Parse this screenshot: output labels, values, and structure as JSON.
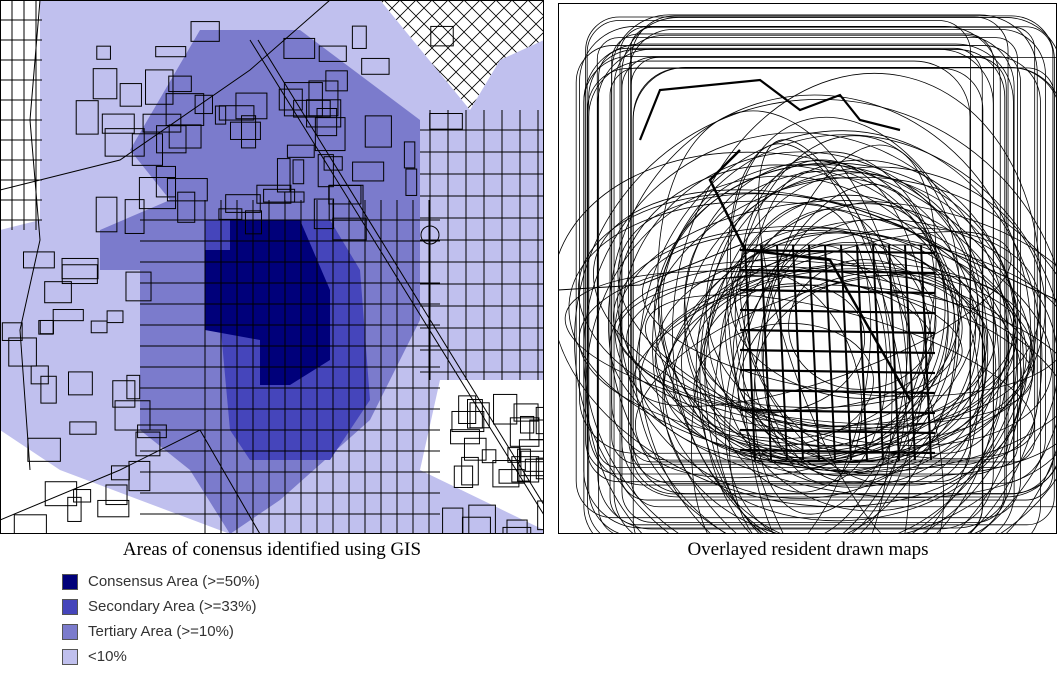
{
  "left_panel": {
    "caption": "Areas of conensus identified using GIS"
  },
  "right_panel": {
    "caption": "Overlayed resident drawn maps"
  },
  "legend": {
    "items": [
      {
        "label": "Consensus Area (>=50%)",
        "color": "#00007a"
      },
      {
        "label": "Secondary Area (>=33%)",
        "color": "#4545bb"
      },
      {
        "label": "Tertiary Area (>=10%)",
        "color": "#7b7bcc"
      },
      {
        "label": "<10%",
        "color": "#c0c0ee"
      }
    ]
  }
}
